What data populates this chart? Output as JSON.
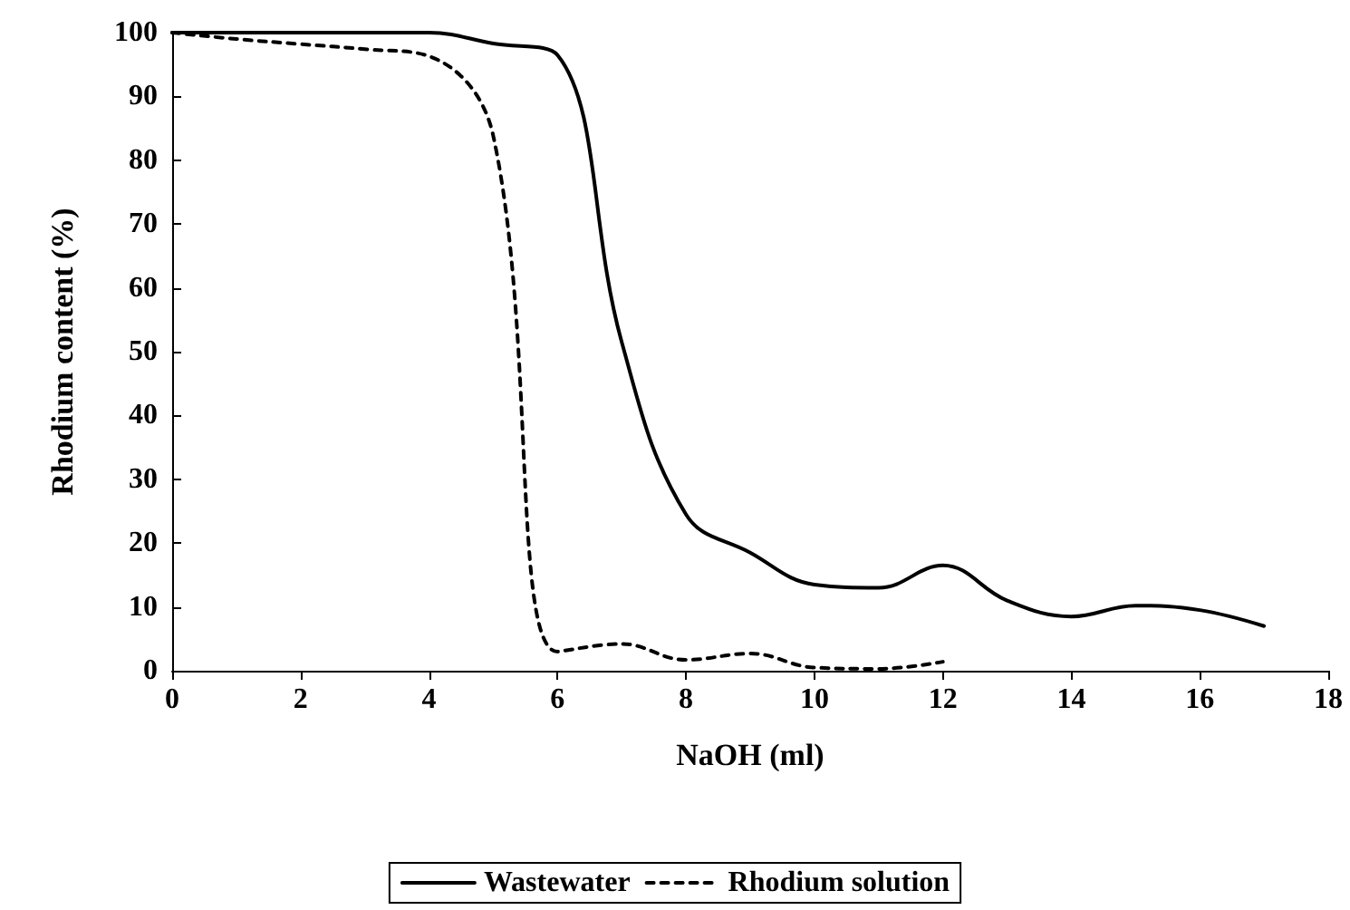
{
  "chart_data": {
    "type": "line",
    "xlabel": "NaOH (ml)",
    "ylabel": "Rhodium content (%)",
    "xlim": [
      0,
      18
    ],
    "xticks": [
      0,
      2,
      4,
      6,
      8,
      10,
      12,
      14,
      16,
      18
    ],
    "ylim": [
      0,
      100
    ],
    "yticks": [
      0,
      10,
      20,
      30,
      40,
      50,
      60,
      70,
      80,
      90,
      100
    ],
    "grid": false,
    "legend": "bottom",
    "marker": "none",
    "series": [
      {
        "name": "Wastewater",
        "color": "#000000",
        "line_style": "solid",
        "x": [
          0,
          1,
          2,
          3,
          4,
          5,
          6,
          7,
          8,
          9,
          10,
          11,
          12,
          13,
          14,
          15,
          16,
          17
        ],
        "values": [
          100,
          100,
          100,
          100,
          100,
          98.3,
          96.5,
          51.5,
          24.5,
          18.5,
          13.5,
          13,
          16.5,
          11,
          8.5,
          10.2,
          9.5,
          7
        ]
      },
      {
        "name": "Rhodium solution",
        "color": "#000000",
        "line_style": "dashed",
        "x": [
          0,
          1,
          2,
          3,
          4,
          5,
          6,
          7,
          8,
          9,
          10,
          11,
          12
        ],
        "values": [
          100,
          99,
          98.2,
          97.4,
          96.3,
          83.8,
          3,
          4.2,
          1.7,
          2.7,
          0.5,
          0.3,
          1.4
        ]
      }
    ]
  }
}
